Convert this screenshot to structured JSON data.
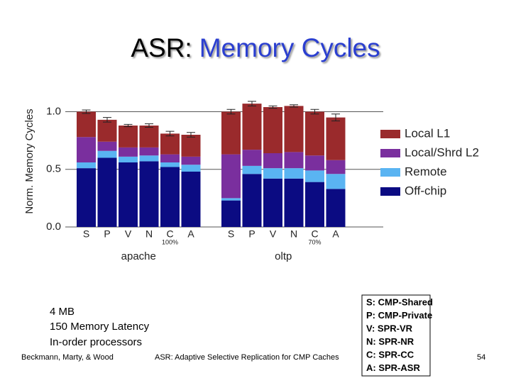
{
  "slide": {
    "title_prefix": "ASR:",
    "title_highlight": "Memory Cycles",
    "notes": [
      "4 MB",
      "150 Memory Latency",
      "In-order processors"
    ],
    "footer_left": "Beckmann, Marty, & Wood",
    "footer_center": "ASR: Adaptive Selective Replication for CMP Caches",
    "page_number": "54",
    "definitions": [
      "S: CMP-Shared",
      "P: CMP-Private",
      "V: SPR-VR",
      "N: SPR-NR",
      "C: SPR-CC",
      "A: SPR-ASR"
    ]
  },
  "chart_data": {
    "type": "stacked_bar",
    "ylabel": "Norm. Memory Cycles",
    "categories": [
      "S",
      "P",
      "V",
      "N",
      "C",
      "A",
      "S",
      "P",
      "V",
      "N",
      "C",
      "A"
    ],
    "groups": [
      {
        "label": "apache",
        "annotation": "100%"
      },
      {
        "label": "oltp",
        "annotation": "70%"
      }
    ],
    "ylim": [
      0,
      1.2
    ],
    "yticks": [
      {
        "value": 0,
        "label": "0.0"
      },
      {
        "value": 0.5,
        "label": "0.5"
      },
      {
        "value": 1,
        "label": "1.0"
      }
    ],
    "grid": true,
    "series": [
      {
        "name": "Off-chip",
        "color": "#0b0b82",
        "values": [
          0.51,
          0.6,
          0.56,
          0.57,
          0.52,
          0.48,
          0.23,
          0.46,
          0.42,
          0.42,
          0.39,
          0.33
        ]
      },
      {
        "name": "Remote",
        "color": "#5ab4f2",
        "values": [
          0.05,
          0.06,
          0.05,
          0.05,
          0.04,
          0.06,
          0.02,
          0.07,
          0.09,
          0.09,
          0.1,
          0.13
        ]
      },
      {
        "name": "Local/Shrd L2",
        "color": "#7a2f9e",
        "values": [
          0.22,
          0.08,
          0.08,
          0.07,
          0.07,
          0.07,
          0.38,
          0.14,
          0.13,
          0.14,
          0.13,
          0.12
        ]
      },
      {
        "name": "Local L1",
        "color": "#9a2a2c",
        "values": [
          0.22,
          0.19,
          0.19,
          0.19,
          0.18,
          0.19,
          0.37,
          0.4,
          0.4,
          0.4,
          0.38,
          0.37
        ],
        "errors": [
          0.015,
          0.02,
          0.01,
          0.015,
          0.02,
          0.02,
          0.02,
          0.02,
          0.01,
          0.01,
          0.02,
          0.03
        ]
      }
    ]
  }
}
